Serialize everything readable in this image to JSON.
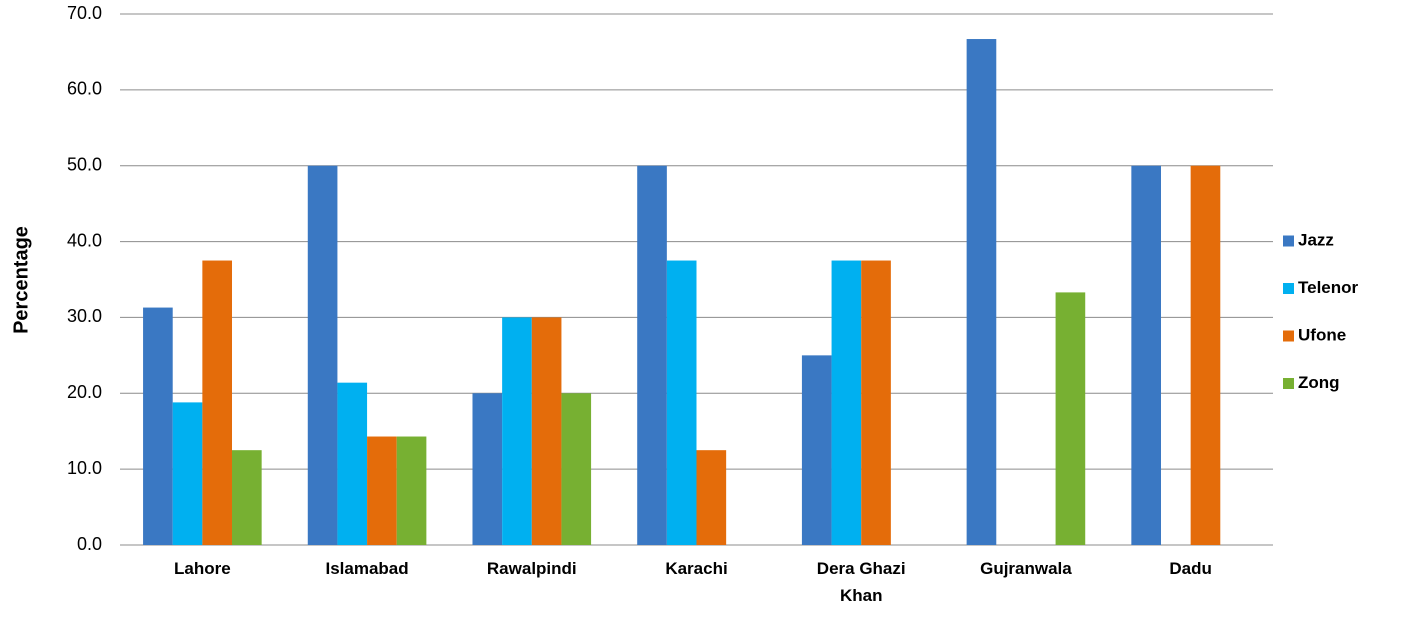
{
  "chart_data": {
    "type": "bar",
    "y_label": "Percentage",
    "categories": [
      "Lahore",
      "Islamabad",
      "Rawalpindi",
      "Karachi",
      "Dera Ghazi Khan",
      "Gujranwala",
      "Dadu"
    ],
    "series": [
      {
        "name": "Jazz",
        "color": "#3a78c3",
        "values": [
          31.3,
          50.0,
          20.0,
          50.0,
          25.0,
          66.7,
          50.0
        ]
      },
      {
        "name": "Telenor",
        "color": "#00b0f0",
        "values": [
          18.8,
          21.4,
          30.0,
          37.5,
          37.5,
          0,
          0
        ]
      },
      {
        "name": "Ufone",
        "color": "#e46c0a",
        "values": [
          37.5,
          14.3,
          30.0,
          12.5,
          37.5,
          0,
          50.0
        ]
      },
      {
        "name": "Zong",
        "color": "#77b032",
        "values": [
          12.5,
          14.3,
          20.0,
          0,
          0,
          33.3,
          0
        ]
      }
    ],
    "ylim": [
      0,
      70
    ],
    "yticks": [
      {
        "value": 0,
        "label": "0.0"
      },
      {
        "value": 10,
        "label": "10.0"
      },
      {
        "value": 20,
        "label": "20.0"
      },
      {
        "value": 30,
        "label": "30.0"
      },
      {
        "value": 40,
        "label": "40.0"
      },
      {
        "value": 50,
        "label": "50.0"
      },
      {
        "value": 60,
        "label": "60.0"
      },
      {
        "value": 70,
        "label": "70.0"
      }
    ],
    "grid": true,
    "legend": "right"
  }
}
